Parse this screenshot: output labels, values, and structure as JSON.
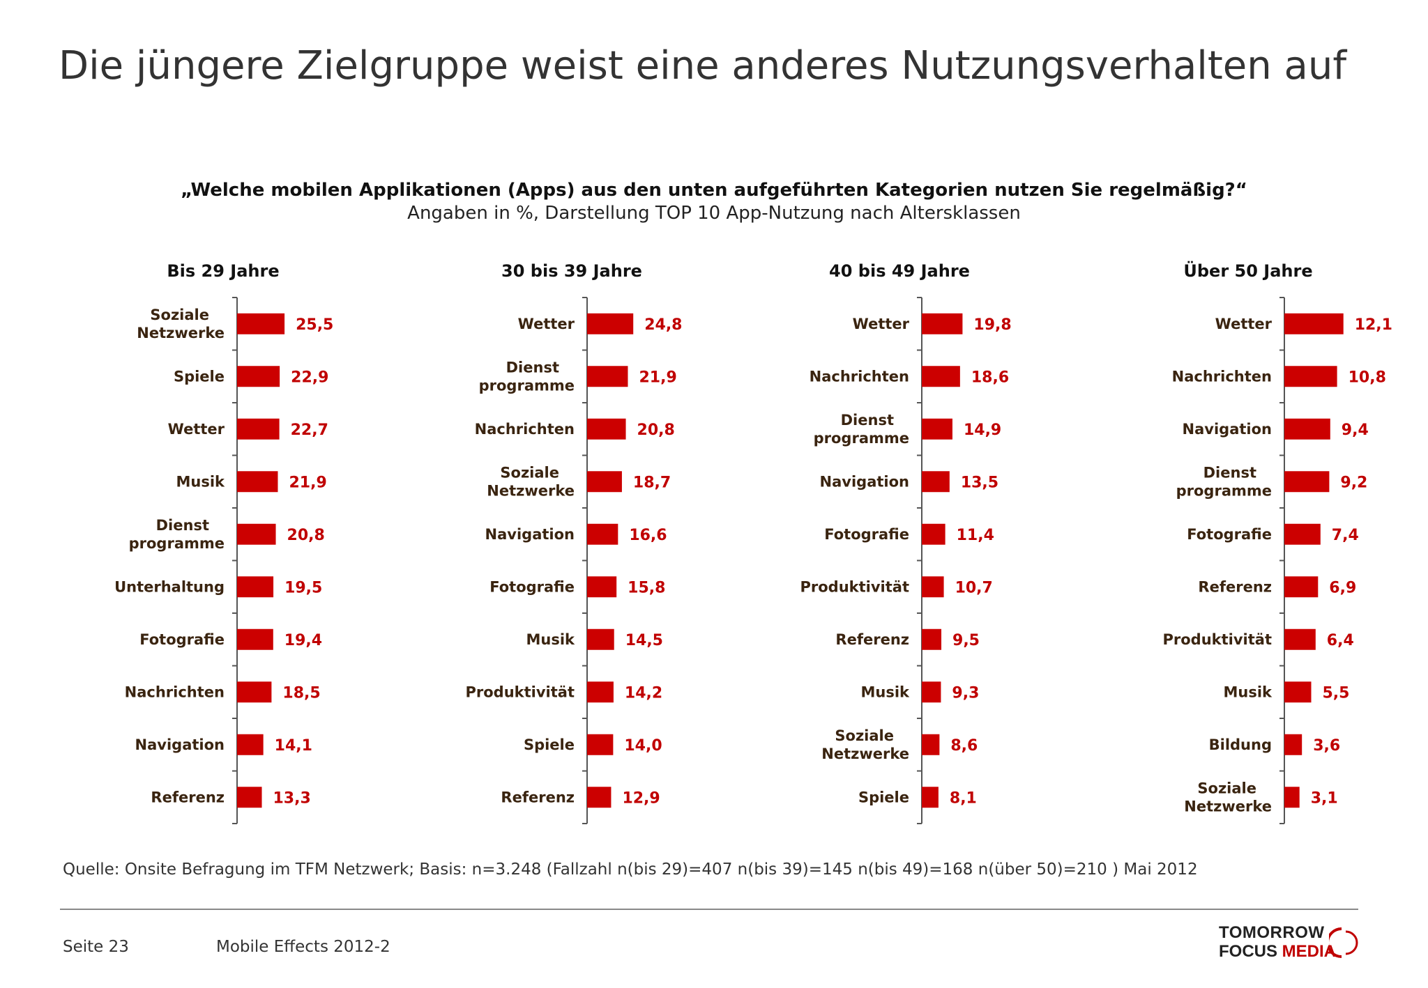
{
  "slide": {
    "title": "Die jüngere Zielgruppe weist eine anderes Nutzungsverhalten auf",
    "question": "„Welche mobilen Applikationen (Apps) aus den unten aufgeführten Kategorien nutzen Sie regelmäßig?“",
    "subtitle": "Angaben in %, Darstellung TOP 10 App-Nutzung nach Altersklassen",
    "source": "Quelle: Onsite Befragung im TFM Netzwerk; Basis: n=3.248 (Fallzahl n(bis 29)=407 n(bis 39)=145 n(bis 49)=168 n(über 50)=210 ) Mai 2012"
  },
  "footer": {
    "page": "Seite 23",
    "document": "Mobile Effects 2012-2",
    "logo_line1": "TOMORROW",
    "logo_line2a": "FOCUS ",
    "logo_line2b": "MEDIA"
  },
  "colors": {
    "bar": "#cc0000",
    "value_text": "#c00000",
    "label_text": "#3a2410",
    "axis": "#555555"
  },
  "chart_data": [
    {
      "type": "bar",
      "orientation": "horizontal",
      "title": "Bis 29 Jahre",
      "categories": [
        "Soziale\nNetzwerke",
        "Spiele",
        "Wetter",
        "Musik",
        "Dienst\nprogramme",
        "Unterhaltung",
        "Fotografie",
        "Nachrichten",
        "Navigation",
        "Referenz"
      ],
      "values": [
        25.5,
        22.9,
        22.7,
        21.9,
        20.8,
        19.5,
        19.4,
        18.5,
        14.1,
        13.3
      ],
      "value_labels": [
        "25,5",
        "22,9",
        "22,7",
        "21,9",
        "20,8",
        "19,5",
        "19,4",
        "18,5",
        "14,1",
        "13,3"
      ]
    },
    {
      "type": "bar",
      "orientation": "horizontal",
      "title": "30 bis 39 Jahre",
      "categories": [
        "Wetter",
        "Dienst\nprogramme",
        "Nachrichten",
        "Soziale\nNetzwerke",
        "Navigation",
        "Fotografie",
        "Musik",
        "Produktivität",
        "Spiele",
        "Referenz"
      ],
      "values": [
        24.8,
        21.9,
        20.8,
        18.7,
        16.6,
        15.8,
        14.5,
        14.2,
        14.0,
        12.9
      ],
      "value_labels": [
        "24,8",
        "21,9",
        "20,8",
        "18,7",
        "16,6",
        "15,8",
        "14,5",
        "14,2",
        "14,0",
        "12,9"
      ]
    },
    {
      "type": "bar",
      "orientation": "horizontal",
      "title": "40 bis 49 Jahre",
      "categories": [
        "Wetter",
        "Nachrichten",
        "Dienst\nprogramme",
        "Navigation",
        "Fotografie",
        "Produktivität",
        "Referenz",
        "Musik",
        "Soziale\nNetzwerke",
        "Spiele"
      ],
      "values": [
        19.8,
        18.6,
        14.9,
        13.5,
        11.4,
        10.7,
        9.5,
        9.3,
        8.6,
        8.1
      ],
      "value_labels": [
        "19,8",
        "18,6",
        "14,9",
        "13,5",
        "11,4",
        "10,7",
        "9,5",
        "9,3",
        "8,6",
        "8,1"
      ]
    },
    {
      "type": "bar",
      "orientation": "horizontal",
      "title": "Über 50 Jahre",
      "categories": [
        "Wetter",
        "Nachrichten",
        "Navigation",
        "Dienst\nprogramme",
        "Fotografie",
        "Referenz",
        "Produktivität",
        "Musik",
        "Bildung",
        "Soziale\nNetzwerke"
      ],
      "values": [
        12.1,
        10.8,
        9.4,
        9.2,
        7.4,
        6.9,
        6.4,
        5.5,
        3.6,
        3.1
      ],
      "value_labels": [
        "12,1",
        "10,8",
        "9,4",
        "9,2",
        "7,4",
        "6,9",
        "6,4",
        "5,5",
        "3,6",
        "3,1"
      ]
    }
  ]
}
